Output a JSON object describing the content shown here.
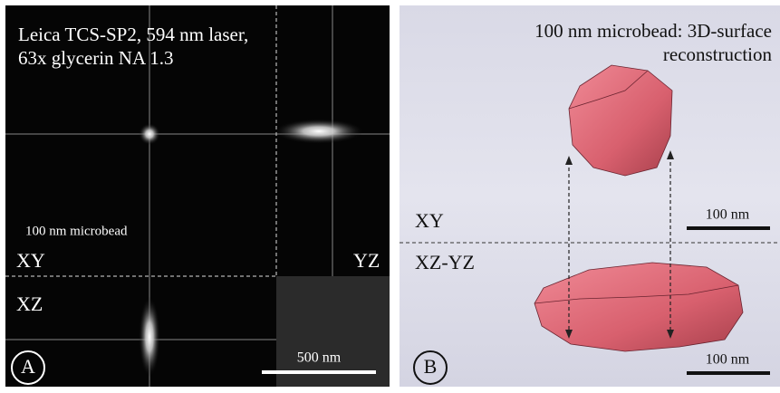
{
  "panel_a": {
    "label": "A",
    "caption_lines": [
      "Leica TCS-SP2, 594 nm laser,",
      "63x glycerin NA 1.3"
    ],
    "object_label": "100 nm microbead",
    "views": [
      "XY",
      "YZ",
      "XZ"
    ],
    "scale_bar": "500 nm"
  },
  "panel_b": {
    "label": "B",
    "caption_lines": [
      "100 nm microbead: 3D-surface",
      "reconstruction"
    ],
    "views": [
      "XY",
      "XZ-YZ"
    ],
    "scale_bars": [
      "100 nm",
      "100 nm"
    ]
  }
}
